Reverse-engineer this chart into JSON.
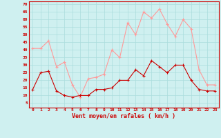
{
  "x": [
    0,
    1,
    2,
    3,
    4,
    5,
    6,
    7,
    8,
    9,
    10,
    11,
    12,
    13,
    14,
    15,
    16,
    17,
    18,
    19,
    20,
    21,
    22,
    23
  ],
  "wind_mean": [
    14,
    25,
    26,
    13,
    10,
    9,
    10,
    10,
    14,
    14,
    15,
    20,
    20,
    27,
    23,
    33,
    29,
    25,
    30,
    30,
    20,
    14,
    13,
    13
  ],
  "wind_gust": [
    41,
    41,
    46,
    29,
    32,
    17,
    9,
    21,
    22,
    24,
    40,
    35,
    58,
    50,
    65,
    61,
    67,
    57,
    49,
    60,
    54,
    27,
    17,
    17
  ],
  "mean_color": "#cc0000",
  "gust_color": "#ff9999",
  "bg_color": "#cff0f0",
  "grid_color": "#aadddd",
  "axis_color": "#cc0000",
  "xlabel": "Vent moyen/en rafales ( km/h )",
  "yticks": [
    5,
    10,
    15,
    20,
    25,
    30,
    35,
    40,
    45,
    50,
    55,
    60,
    65,
    70
  ],
  "ylim": [
    2,
    72
  ],
  "xlim": [
    -0.5,
    23.5
  ]
}
